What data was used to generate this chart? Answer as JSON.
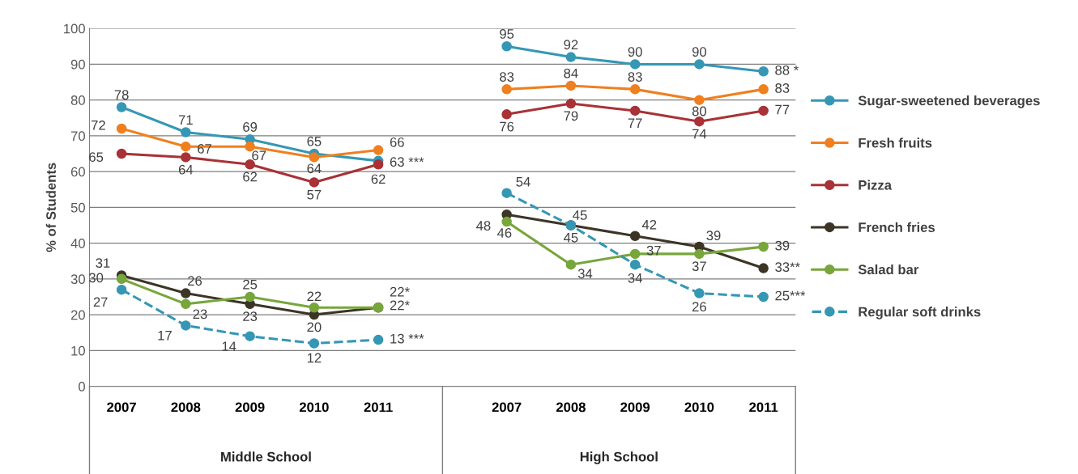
{
  "chart_data": {
    "type": "line",
    "ylabel": "% of Students",
    "categories": [
      "2007",
      "2008",
      "2009",
      "2010",
      "2011",
      null,
      "2007",
      "2008",
      "2009",
      "2010",
      "2011"
    ],
    "series": [
      {
        "name": "Sugar-sweetened beverages",
        "color": "#3597b4",
        "values": [
          78,
          71,
          69,
          65,
          63,
          null,
          95,
          92,
          90,
          90,
          88
        ],
        "value_labels": [
          "78",
          "71",
          "69",
          "65",
          "63 ***",
          null,
          "95",
          "92",
          "90",
          "90",
          "88 *"
        ]
      },
      {
        "name": "Fresh fruits",
        "color": "#f07f1f",
        "values": [
          72,
          67,
          67,
          64,
          66,
          null,
          83,
          84,
          83,
          80,
          83
        ],
        "value_labels": [
          "72",
          "67",
          "67",
          "64",
          "66",
          null,
          "83",
          "84",
          "83",
          "80",
          "83"
        ]
      },
      {
        "name": "Pizza",
        "color": "#a83236",
        "values": [
          65,
          64,
          62,
          57,
          62,
          null,
          76,
          79,
          77,
          74,
          77
        ],
        "value_labels": [
          "65",
          "64",
          "62",
          "57",
          "62",
          null,
          "76",
          "79",
          "77",
          "74",
          "77"
        ]
      },
      {
        "name": "French fries",
        "color": "#3c3526",
        "values": [
          31,
          26,
          23,
          20,
          22,
          null,
          48,
          45,
          42,
          39,
          33
        ],
        "value_labels": [
          "31",
          "26",
          "23",
          "20",
          "22*",
          null,
          "48",
          "45",
          "42",
          "39",
          "33**"
        ]
      },
      {
        "name": "Salad bar",
        "color": "#77a63b",
        "values": [
          30,
          23,
          25,
          22,
          22,
          null,
          46,
          34,
          37,
          37,
          39
        ],
        "value_labels": [
          "30",
          "23",
          "25",
          "22",
          "22*",
          null,
          "46",
          "34",
          "37",
          "37",
          "39"
        ]
      },
      {
        "name": "Regular soft drinks",
        "color": "#3597b4",
        "line_style": "dashed",
        "values": [
          27,
          17,
          14,
          12,
          13,
          null,
          54,
          45,
          34,
          26,
          25
        ],
        "value_labels": [
          "27",
          "17",
          "14",
          "12",
          "13 ***",
          null,
          "54",
          "45",
          "34",
          "26",
          "25***"
        ]
      }
    ],
    "ylim": [
      0,
      100
    ],
    "yticks": [
      0,
      10,
      20,
      30,
      40,
      50,
      60,
      70,
      80,
      90,
      100
    ],
    "grid": "y",
    "legend": "right",
    "marker": "circle",
    "line_style": "solid",
    "annotations": [
      "Middle School",
      "High School"
    ]
  }
}
